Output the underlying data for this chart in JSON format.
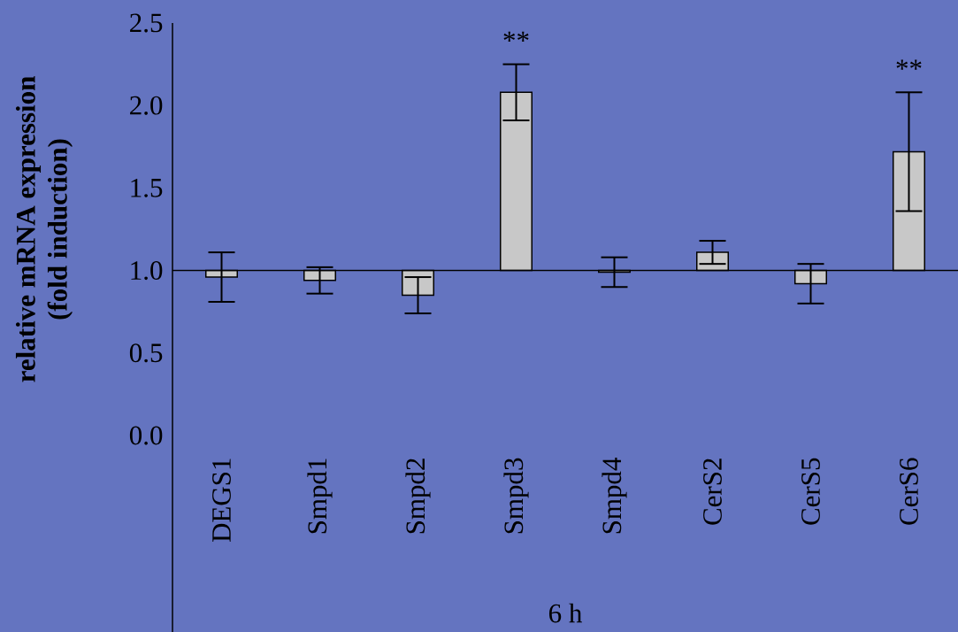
{
  "chart_data": {
    "type": "bar",
    "ylabel": "relative mRNA expression\n(fold induction)",
    "xlabel": "6 h",
    "categories": [
      "DEGS1",
      "Smpd1",
      "Smpd2",
      "Smpd3",
      "Smpd4",
      "CerS2",
      "CerS5",
      "CerS6"
    ],
    "base": [
      1,
      1,
      1,
      1,
      1,
      1,
      1,
      1
    ],
    "values": [
      -0.04,
      -0.06,
      -0.15,
      1.08,
      -0.01,
      0.11,
      -0.08,
      0.72
    ],
    "errors": [
      0.15,
      0.08,
      0.11,
      0.17,
      0.09,
      0.07,
      0.12,
      0.36
    ],
    "color": "#c8c8c8",
    "ylim": [
      0,
      2.5
    ],
    "yticks": [
      {
        "value": 0,
        "label": "0.0"
      },
      {
        "value": 0.5,
        "label": "0.5"
      },
      {
        "value": 1,
        "label": "1.0"
      },
      {
        "value": 1.5,
        "label": "1.5"
      },
      {
        "value": 2,
        "label": "2.0"
      },
      {
        "value": 2.5,
        "label": "2.5"
      }
    ],
    "annotations": [
      {
        "text": "**",
        "x": "Smpd3",
        "y": 2.08
      },
      {
        "text": "**",
        "x": "CerS6",
        "y": 1.72
      }
    ]
  }
}
